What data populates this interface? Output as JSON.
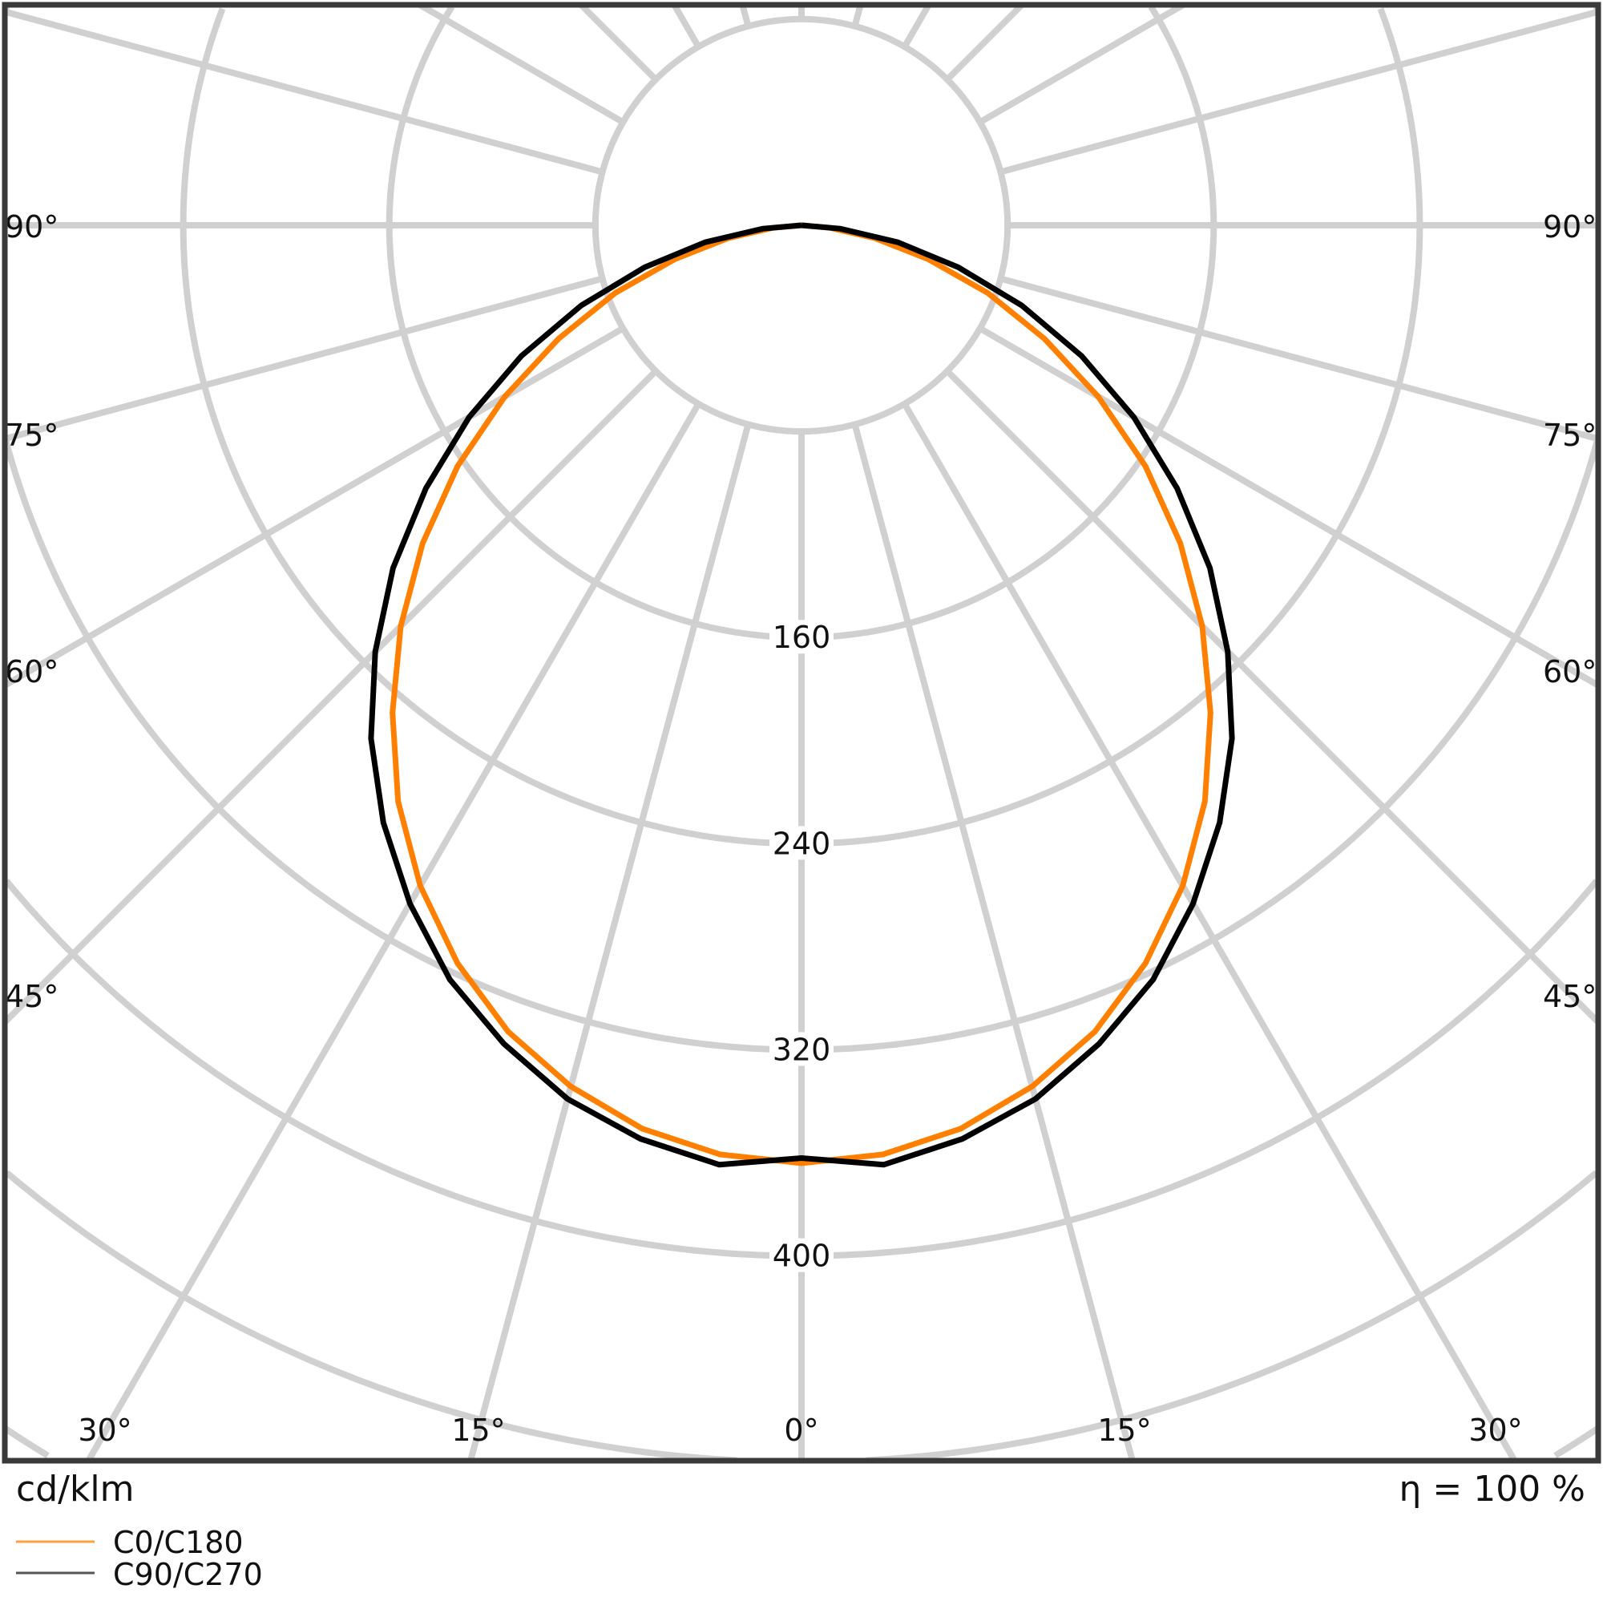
{
  "chart_data": {
    "type": "polar-line",
    "unit_label": "cd/klm",
    "efficiency_label": "η = 100 %",
    "radial_ticks": [
      160,
      240,
      320,
      400
    ],
    "radial_grid_step": 80,
    "angle_grid_step_deg": 15,
    "angle_labels": {
      "left": [
        "90°",
        "75°",
        "60°",
        "45°"
      ],
      "right": [
        "90°",
        "75°",
        "60°",
        "45°"
      ],
      "bottom": [
        "30°",
        "15°",
        "0°",
        "15°",
        "30°"
      ]
    },
    "grid": true,
    "symmetric": true,
    "gamma_deg": [
      0,
      5,
      10,
      15,
      20,
      25,
      30,
      35,
      40,
      45,
      50,
      55,
      60,
      65,
      70,
      75,
      80,
      85,
      90
    ],
    "series": [
      {
        "name": "C0/C180",
        "color": "#ff8000",
        "values": [
          364,
          362,
          356,
          346,
          333,
          316,
          296,
          273,
          247,
          220,
          192,
          163,
          133,
          104,
          77,
          51,
          29,
          11,
          0
        ]
      },
      {
        "name": "C90/C270",
        "color": "#000000",
        "values": [
          362,
          366,
          360,
          351,
          338,
          323,
          304,
          283,
          260,
          234,
          207,
          178,
          149,
          120,
          91,
          63,
          38,
          15,
          0
        ]
      }
    ],
    "legend_placement": "bottom-left"
  }
}
